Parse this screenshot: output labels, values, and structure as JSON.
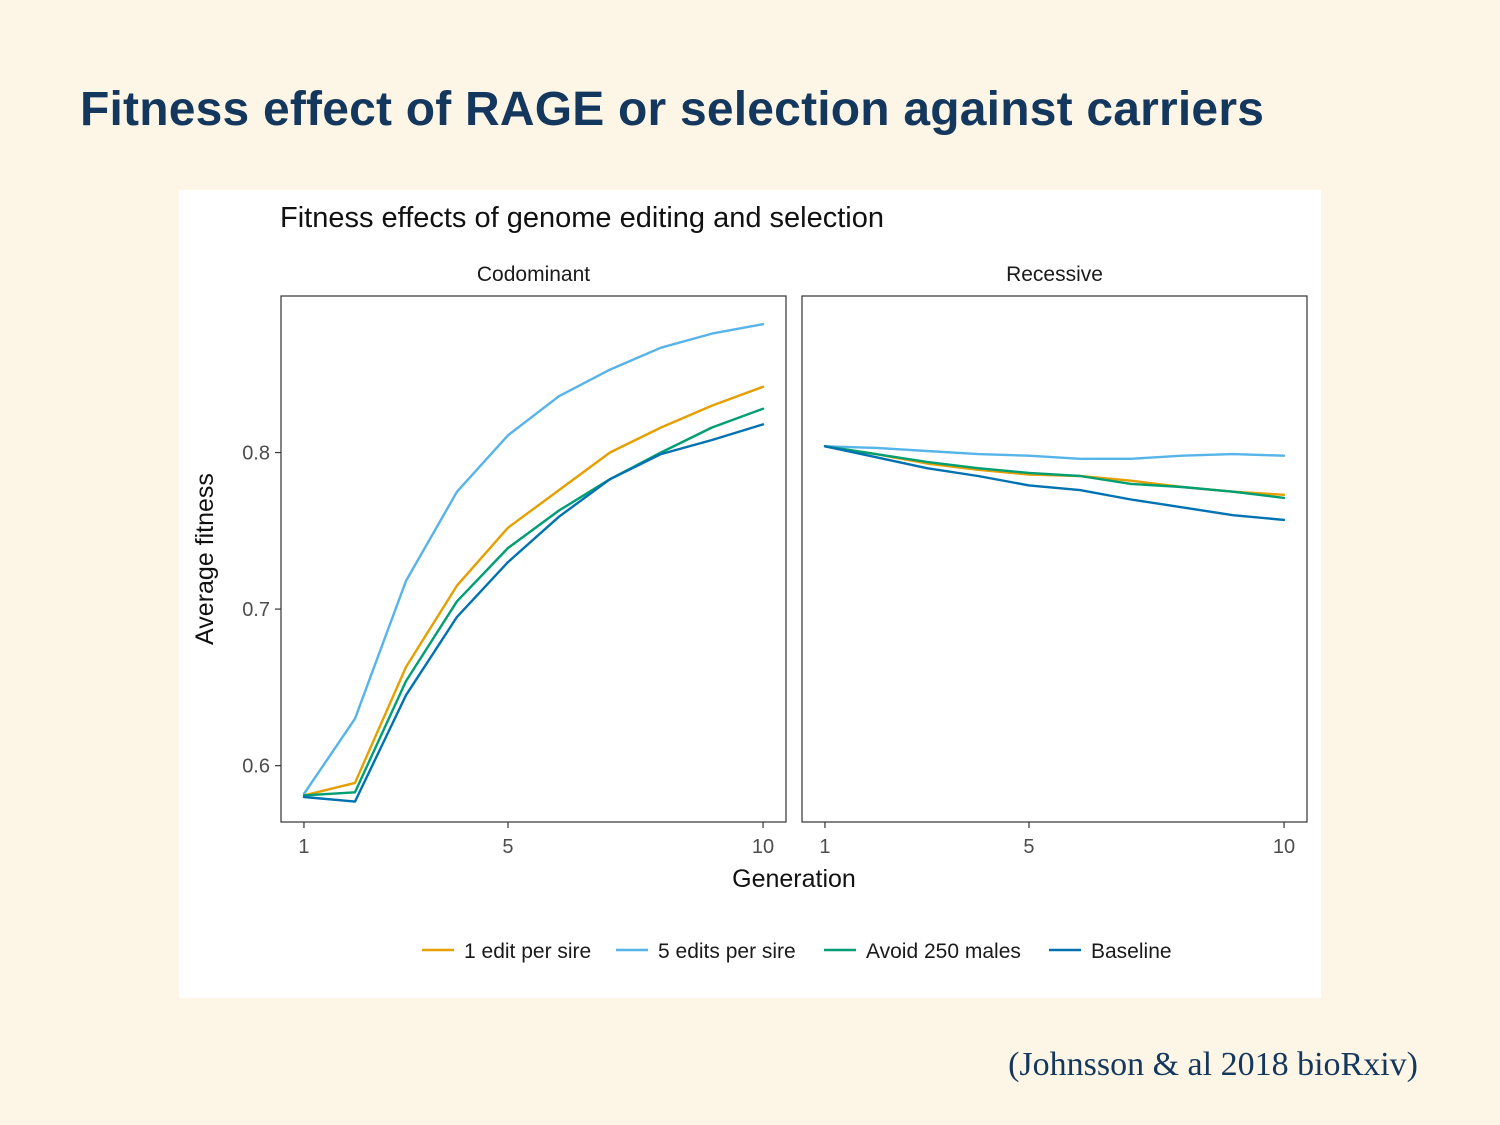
{
  "slide": {
    "title": "Fitness effect of RAGE or selection against carriers",
    "citation": "(Johnsson & al 2018 bioRxiv)",
    "background": "#fdf6e7",
    "title_color": "#14375e"
  },
  "chart_data": {
    "type": "line",
    "title": "Fitness effects of genome editing and selection",
    "xlabel": "Generation",
    "ylabel": "Average fitness",
    "x": [
      1,
      2,
      3,
      4,
      5,
      6,
      7,
      8,
      9,
      10
    ],
    "xlim": [
      0.55,
      10.45
    ],
    "ylim": [
      0.564,
      0.9
    ],
    "xticks": [
      1,
      5,
      10
    ],
    "yticks": [
      0.6,
      0.7,
      0.8
    ],
    "ytick_labels": [
      "0.6",
      "0.7",
      "0.8"
    ],
    "grid": false,
    "legend_position": "bottom",
    "legend": [
      "1 edit per sire",
      "5 edits per sire",
      "Avoid 250 males",
      "Baseline"
    ],
    "colors": {
      "1 edit per sire": "#e69f00",
      "5 edits per sire": "#56b4e9",
      "Avoid 250 males": "#009e73",
      "Baseline": "#0072b2"
    },
    "panels": [
      {
        "name": "Codominant",
        "series": [
          {
            "name": "1 edit per sire",
            "values": [
              0.581,
              0.589,
              0.663,
              0.715,
              0.752,
              0.776,
              0.8,
              0.816,
              0.83,
              0.842
            ]
          },
          {
            "name": "5 edits per sire",
            "values": [
              0.582,
              0.63,
              0.718,
              0.775,
              0.811,
              0.836,
              0.853,
              0.867,
              0.876,
              0.882
            ]
          },
          {
            "name": "Avoid 250 males",
            "values": [
              0.581,
              0.583,
              0.654,
              0.705,
              0.739,
              0.763,
              0.783,
              0.8,
              0.816,
              0.828
            ]
          },
          {
            "name": "Baseline",
            "values": [
              0.58,
              0.577,
              0.645,
              0.695,
              0.73,
              0.759,
              0.783,
              0.799,
              0.808,
              0.818
            ]
          }
        ]
      },
      {
        "name": "Recessive",
        "series": [
          {
            "name": "1 edit per sire",
            "values": [
              0.804,
              0.799,
              0.793,
              0.789,
              0.786,
              0.785,
              0.782,
              0.778,
              0.775,
              0.773
            ]
          },
          {
            "name": "5 edits per sire",
            "values": [
              0.804,
              0.803,
              0.801,
              0.799,
              0.798,
              0.796,
              0.796,
              0.798,
              0.799,
              0.798
            ]
          },
          {
            "name": "Avoid 250 males",
            "values": [
              0.804,
              0.799,
              0.794,
              0.79,
              0.787,
              0.785,
              0.78,
              0.778,
              0.775,
              0.771
            ]
          },
          {
            "name": "Baseline",
            "values": [
              0.804,
              0.797,
              0.79,
              0.785,
              0.779,
              0.776,
              0.77,
              0.765,
              0.76,
              0.757
            ]
          }
        ]
      }
    ]
  }
}
